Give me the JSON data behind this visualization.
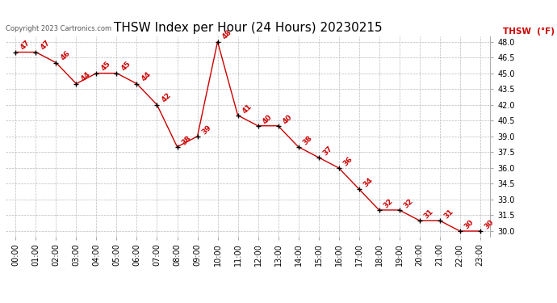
{
  "title": "THSW Index per Hour (24 Hours) 20230215",
  "copyright": "Copyright 2023 Cartronics.com",
  "legend_label": "THSW  (°F)",
  "hours": [
    "00:00",
    "01:00",
    "02:00",
    "03:00",
    "04:00",
    "05:00",
    "06:00",
    "07:00",
    "08:00",
    "09:00",
    "10:00",
    "11:00",
    "12:00",
    "13:00",
    "14:00",
    "15:00",
    "16:00",
    "17:00",
    "18:00",
    "19:00",
    "20:00",
    "21:00",
    "22:00",
    "23:00"
  ],
  "values": [
    47,
    47,
    46,
    44,
    45,
    45,
    44,
    42,
    38,
    39,
    48,
    41,
    40,
    40,
    38,
    37,
    36,
    34,
    32,
    32,
    31,
    31,
    30,
    30
  ],
  "line_color": "#cc0000",
  "marker_color": "#000000",
  "label_color": "#cc0000",
  "bg_color": "#ffffff",
  "grid_color": "#bbbbbb",
  "ylim_min": 29.5,
  "ylim_max": 48.5,
  "yticks": [
    30.0,
    31.5,
    33.0,
    34.5,
    36.0,
    37.5,
    39.0,
    40.5,
    42.0,
    43.5,
    45.0,
    46.5,
    48.0
  ],
  "title_fontsize": 11,
  "label_fontsize": 6.5,
  "tick_fontsize": 7,
  "copyright_fontsize": 6,
  "legend_fontsize": 7.5
}
